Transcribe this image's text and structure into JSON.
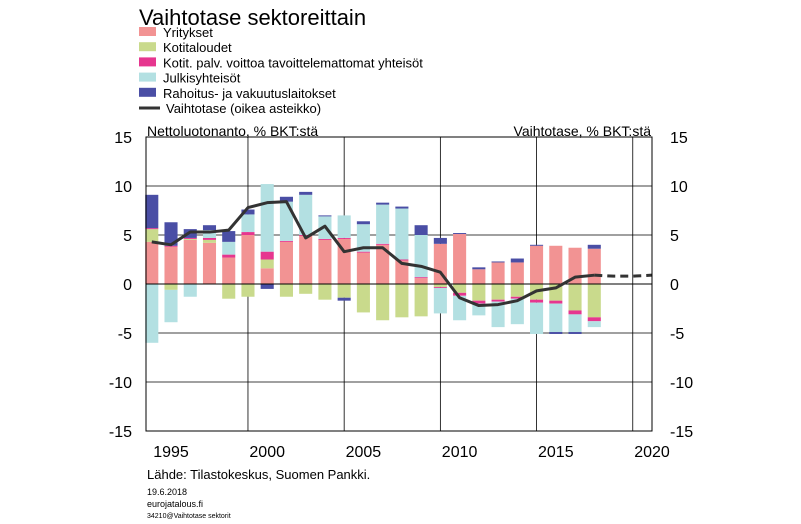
{
  "chart_data": {
    "type": "bar",
    "title": "Vaihtotase sektoreittain",
    "left_axis_label": "Nettoluotonanto, % BKT:stä",
    "right_axis_label": "Vaihtotase, % BKT:stä",
    "source": "Lähde: Tilastokeskus, Suomen Pankki.",
    "footer_date": "19.6.2018",
    "footer_site": "eurojatalous.fi",
    "footer_id": "34210@Vaihtotase  sektorit",
    "ylim": [
      -15,
      15
    ],
    "y_ticks": [
      15,
      10,
      5,
      0,
      -5,
      -10,
      -15
    ],
    "y_tick_labels": [
      "15",
      "10",
      "5",
      "0",
      "-5",
      "-10",
      "-15"
    ],
    "xlim": [
      1993.7,
      2020
    ],
    "x_ticks": [
      1995,
      2000,
      2005,
      2010,
      2015,
      2020
    ],
    "x_tick_labels": [
      "1995",
      "2000",
      "2005",
      "2010",
      "2015",
      "2020"
    ],
    "x_gridlines": [
      1999,
      2004,
      2009,
      2014,
      2019
    ],
    "years": [
      1994,
      1995,
      1996,
      1997,
      1998,
      1999,
      2000,
      2001,
      2002,
      2003,
      2004,
      2005,
      2006,
      2007,
      2008,
      2009,
      2010,
      2011,
      2012,
      2013,
      2014,
      2015,
      2016,
      2017
    ],
    "series": [
      {
        "name": "Yritykset",
        "color": "#f29393",
        "values": [
          4.3,
          3.8,
          4.5,
          4.2,
          2.7,
          5.0,
          1.6,
          4.3,
          4.9,
          4.5,
          4.6,
          3.2,
          4.0,
          2.4,
          0.6,
          4.1,
          5.1,
          1.5,
          2.2,
          2.2,
          3.9,
          3.9,
          3.7,
          3.6
        ]
      },
      {
        "name": "Kotitaloudet",
        "color": "#c9da8c",
        "values": [
          1.3,
          -0.6,
          0.1,
          0.3,
          -1.5,
          -1.3,
          0.9,
          -1.3,
          -1.0,
          -1.6,
          -1.4,
          -2.9,
          -3.7,
          -3.4,
          -3.3,
          -0.3,
          -0.9,
          -1.7,
          -1.6,
          -1.3,
          -1.6,
          -1.7,
          -2.7,
          -3.4
        ]
      },
      {
        "name": "Kotit. palv. voittoa tavoittelemattomat yhteisöt",
        "color": "#e6368f",
        "values": [
          0.1,
          0.1,
          0.1,
          0.2,
          0.3,
          0.3,
          0.8,
          0.1,
          0.1,
          0.1,
          0.1,
          0.1,
          0.1,
          0.1,
          0.1,
          -0.1,
          -0.3,
          -0.3,
          -0.2,
          -0.2,
          -0.3,
          -0.3,
          -0.4,
          -0.4
        ]
      },
      {
        "name": "Julkisyhteisöt",
        "color": "#b3e0e2",
        "values": [
          -6.0,
          -3.3,
          -1.3,
          0.8,
          1.3,
          1.8,
          6.9,
          4.0,
          4.1,
          2.3,
          2.3,
          2.8,
          4.0,
          5.2,
          4.3,
          -2.6,
          -2.5,
          -1.2,
          -2.6,
          -2.6,
          -3.2,
          -2.9,
          -1.8,
          -0.6
        ]
      },
      {
        "name": "Rahoitus- ja vakuutuslaitokset",
        "color": "#4a4ea5",
        "values": [
          3.4,
          2.4,
          0.9,
          0.5,
          1.1,
          0.5,
          -0.5,
          0.5,
          0.3,
          0.1,
          -0.3,
          0.3,
          0.2,
          0.2,
          1.0,
          0.6,
          0.1,
          0.2,
          0.1,
          0.4,
          0.1,
          -0.2,
          -0.2,
          0.4
        ]
      }
    ],
    "line": {
      "name": "Vaihtotase (oikea asteikko)",
      "color": "#333333",
      "years": [
        1994,
        1995,
        1996,
        1997,
        1998,
        1999,
        2000,
        2001,
        2002,
        2003,
        2004,
        2005,
        2006,
        2007,
        2008,
        2009,
        2010,
        2011,
        2012,
        2013,
        2014,
        2015,
        2016,
        2017
      ],
      "values": [
        4.3,
        4.0,
        5.3,
        5.3,
        5.5,
        7.8,
        8.3,
        8.4,
        4.7,
        5.9,
        3.3,
        3.7,
        3.7,
        2.1,
        1.8,
        1.2,
        -1.4,
        -2.2,
        -2.1,
        -1.7,
        -0.7,
        -0.4,
        0.7,
        0.9
      ]
    },
    "forecast_line": {
      "years": [
        2017,
        2018,
        2019,
        2020
      ],
      "values": [
        0.9,
        0.8,
        0.8,
        0.9
      ]
    },
    "legend_position": "top-left"
  }
}
